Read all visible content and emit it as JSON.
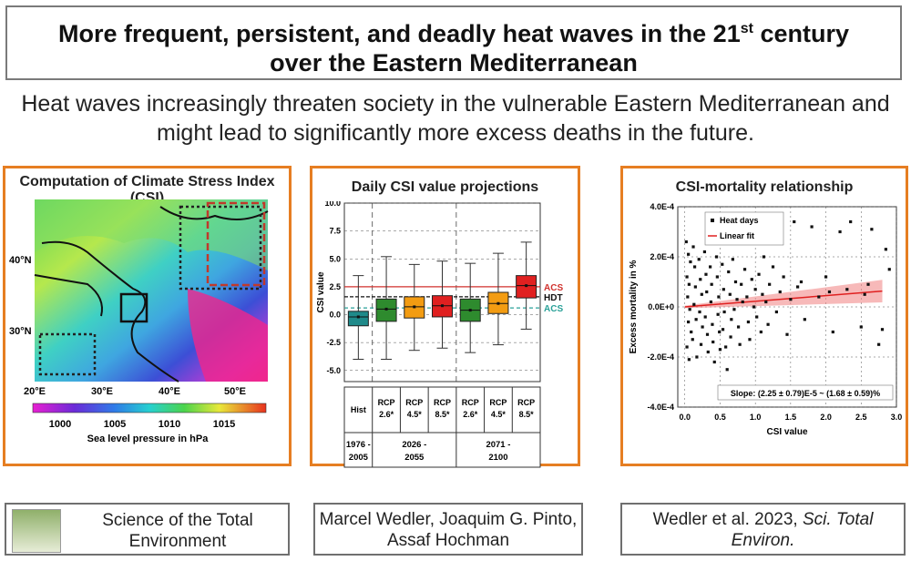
{
  "header": {
    "title_line1": "More frequent, persistent, and deadly heat waves in the 21",
    "title_sup": "st",
    "title_line1_end": " century",
    "title_line2": "over the Eastern Mediterranean"
  },
  "subtitle": {
    "line1": "Heat waves increasingly threaten society in the vulnerable Eastern Mediterranean and",
    "line2": "might lead to significantly more excess deaths in the future."
  },
  "panel_map": {
    "title": "Computation of Climate Stress Index (CSI)",
    "lat_labels": [
      "40°N",
      "30°N"
    ],
    "lon_labels": [
      "20°E",
      "30°E",
      "40°E",
      "50°E"
    ],
    "colorbar_ticks": [
      "1000",
      "1005",
      "1010",
      "1015"
    ],
    "colorbar_label": "Sea level pressure in hPa"
  },
  "panel_box": {
    "title": "Daily CSI value projections",
    "ylabel": "CSI value",
    "yticks": [
      "10.0",
      "7.5",
      "5.0",
      "2.5",
      "0.0",
      "-2.5",
      "-5.0"
    ],
    "lines": [
      {
        "label": "ACS",
        "value": 2.5,
        "color": "#d0312d"
      },
      {
        "label": "HDT",
        "value": 1.6,
        "color": "#111111"
      },
      {
        "label": "ACS",
        "value": 0.6,
        "color": "#2aa198"
      }
    ],
    "chart_data": {
      "type": "box",
      "ylabel": "CSI value",
      "ylim": [
        -6,
        10
      ],
      "boxes": [
        {
          "label": "Hist",
          "period": "1976 - 2005",
          "color": "#1f8a8a",
          "whisker_low": -4.0,
          "q1": -1.0,
          "median": -0.2,
          "q3": 0.3,
          "whisker_high": 3.5,
          "mean": -0.2
        },
        {
          "label": "RCP 2.6*",
          "period": "2026 - 2055",
          "color": "#2e8b2e",
          "whisker_low": -4.0,
          "q1": -0.6,
          "median": 0.5,
          "q3": 1.4,
          "whisker_high": 5.2,
          "mean": 0.5
        },
        {
          "label": "RCP 4.5*",
          "period": "2026 - 2055",
          "color": "#f39c12",
          "whisker_low": -3.2,
          "q1": -0.3,
          "median": 0.7,
          "q3": 1.6,
          "whisker_high": 4.5,
          "mean": 0.7
        },
        {
          "label": "RCP 8.5*",
          "period": "2026 - 2055",
          "color": "#e02020",
          "whisker_low": -3.0,
          "q1": -0.2,
          "median": 0.8,
          "q3": 1.7,
          "whisker_high": 4.8,
          "mean": 0.8
        },
        {
          "label": "RCP 2.6*",
          "period": "2071 - 2100",
          "color": "#2e8b2e",
          "whisker_low": -3.4,
          "q1": -0.6,
          "median": 0.4,
          "q3": 1.4,
          "whisker_high": 4.6,
          "mean": 0.4
        },
        {
          "label": "RCP 4.5*",
          "period": "2071 - 2100",
          "color": "#f39c12",
          "whisker_low": -2.7,
          "q1": 0.1,
          "median": 1.0,
          "q3": 2.0,
          "whisker_high": 5.5,
          "mean": 1.0
        },
        {
          "label": "RCP 8.5*",
          "period": "2071 - 2100",
          "color": "#e02020",
          "whisker_low": -1.3,
          "q1": 1.5,
          "median": 2.6,
          "q3": 3.5,
          "whisker_high": 6.5,
          "mean": 2.6
        }
      ]
    },
    "table": {
      "row1": [
        "Hist",
        "RCP\n2.6*",
        "RCP\n4.5*",
        "RCP\n8.5*",
        "RCP\n2.6*",
        "RCP\n4.5*",
        "RCP\n8.5*"
      ],
      "periods": [
        "1976 -\n2005",
        "2026 -\n2055",
        "2071 -\n2100"
      ]
    }
  },
  "panel_scatter": {
    "title": "CSI-mortality relationship",
    "legend": [
      "Heat days",
      "Linear fit"
    ],
    "slope_text": "Slope: (2.25 ± 0.79)E-5 ~ (1.68 ± 0.59)%",
    "chart_data": {
      "type": "scatter",
      "xlabel": "CSI value",
      "ylabel": "Excess mortality in %",
      "xlim": [
        -0.1,
        3.0
      ],
      "ylim": [
        -0.0004,
        0.0004
      ],
      "xticks": [
        "0.0",
        "0.5",
        "1.0",
        "1.5",
        "2.0",
        "2.5",
        "3.0"
      ],
      "yticks": [
        "4.0E-4",
        "2.0E-4",
        "0.0E+0",
        "-2.0E-4",
        "-4.0E-4"
      ],
      "fit": {
        "intercept": 0.0,
        "slope": 2.25e-05,
        "x_range": [
          0.0,
          2.8
        ]
      },
      "points": [
        [
          0.02,
          0.00026
        ],
        [
          0.05,
          0.00021
        ],
        [
          0.08,
          0.00018
        ],
        [
          0.03,
          0.00012
        ],
        [
          0.06,
          9e-05
        ],
        [
          0.04,
          4e-05
        ],
        [
          0.07,
          -1e-05
        ],
        [
          0.05,
          -6e-05
        ],
        [
          0.09,
          -0.0001
        ],
        [
          0.03,
          -0.00016
        ],
        [
          0.06,
          -0.00021
        ],
        [
          0.12,
          0.00024
        ],
        [
          0.14,
          0.00016
        ],
        [
          0.15,
          8e-05
        ],
        [
          0.13,
          1e-05
        ],
        [
          0.16,
          -5e-05
        ],
        [
          0.11,
          -0.00013
        ],
        [
          0.17,
          -0.0002
        ],
        [
          0.2,
          0.00019
        ],
        [
          0.22,
          0.00011
        ],
        [
          0.24,
          5e-05
        ],
        [
          0.21,
          -2e-05
        ],
        [
          0.25,
          -8e-05
        ],
        [
          0.23,
          -0.00015
        ],
        [
          0.28,
          0.00022
        ],
        [
          0.3,
          0.00013
        ],
        [
          0.31,
          6e-05
        ],
        [
          0.29,
          -4e-05
        ],
        [
          0.32,
          -0.00011
        ],
        [
          0.33,
          -0.00018
        ],
        [
          0.36,
          0.00016
        ],
        [
          0.38,
          9e-05
        ],
        [
          0.37,
          2e-05
        ],
        [
          0.39,
          -7e-05
        ],
        [
          0.4,
          -0.00014
        ],
        [
          0.42,
          -0.00022
        ],
        [
          0.45,
          0.0002
        ],
        [
          0.46,
          0.00012
        ],
        [
          0.48,
          4e-05
        ],
        [
          0.47,
          -3e-05
        ],
        [
          0.49,
          -0.0001
        ],
        [
          0.5,
          -0.00017
        ],
        [
          0.53,
          0.00017
        ],
        [
          0.55,
          7e-05
        ],
        [
          0.56,
          -2e-05
        ],
        [
          0.54,
          -9e-05
        ],
        [
          0.58,
          -0.00016
        ],
        [
          0.6,
          -0.00025
        ],
        [
          0.62,
          0.00014
        ],
        [
          0.64,
          5e-05
        ],
        [
          0.66,
          -5e-05
        ],
        [
          0.65,
          -0.00012
        ],
        [
          0.68,
          0.00019
        ],
        [
          0.7,
          -1e-05
        ],
        [
          0.72,
          0.0001
        ],
        [
          0.74,
          3e-05
        ],
        [
          0.76,
          -8e-05
        ],
        [
          0.78,
          -0.00015
        ],
        [
          0.8,
          9e-05
        ],
        [
          0.82,
          2e-05
        ],
        [
          0.85,
          0.00015
        ],
        [
          0.88,
          4e-05
        ],
        [
          0.9,
          -6e-05
        ],
        [
          0.92,
          -0.00013
        ],
        [
          0.95,
          0.00011
        ],
        [
          0.98,
          0.0
        ],
        [
          1.0,
          7e-05
        ],
        [
          1.02,
          -4e-05
        ],
        [
          1.05,
          0.00013
        ],
        [
          1.08,
          -0.0001
        ],
        [
          1.1,
          5e-05
        ],
        [
          1.12,
          0.0002
        ],
        [
          1.15,
          2e-05
        ],
        [
          1.18,
          -7e-05
        ],
        [
          1.2,
          9e-05
        ],
        [
          1.25,
          0.00016
        ],
        [
          1.3,
          -2e-05
        ],
        [
          1.35,
          6e-05
        ],
        [
          1.4,
          0.00012
        ],
        [
          1.45,
          -0.00011
        ],
        [
          1.5,
          3e-05
        ],
        [
          1.55,
          0.00034
        ],
        [
          1.6,
          8e-05
        ],
        [
          1.65,
          0.0001
        ],
        [
          1.7,
          -5e-05
        ],
        [
          1.8,
          0.00032
        ],
        [
          1.9,
          4e-05
        ],
        [
          2.0,
          0.00012
        ],
        [
          2.05,
          6e-05
        ],
        [
          2.1,
          -0.0001
        ],
        [
          2.2,
          0.0003
        ],
        [
          2.3,
          7e-05
        ],
        [
          2.35,
          0.00034
        ],
        [
          2.5,
          -8e-05
        ],
        [
          2.55,
          5e-05
        ],
        [
          2.6,
          9e-05
        ],
        [
          2.65,
          0.00031
        ],
        [
          2.75,
          -0.00015
        ],
        [
          2.8,
          -9e-05
        ],
        [
          2.85,
          0.00023
        ],
        [
          2.9,
          0.00015
        ]
      ]
    }
  },
  "footer": {
    "journal": "Science of the Total\nEnvironment",
    "authors": "Marcel Wedler, Joaquim G. Pinto,\nAssaf Hochman",
    "citation_plain": "Wedler et al. 2023, ",
    "citation_italic": "Sci. Total\nEnviron."
  }
}
